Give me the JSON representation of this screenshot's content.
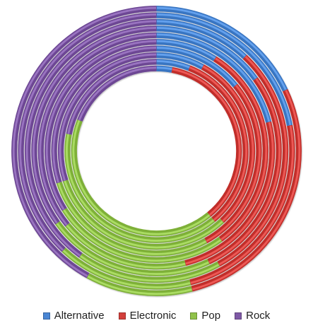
{
  "chart_data": {
    "type": "doughnut",
    "categories": [
      "Alternative",
      "Electronic",
      "Pop",
      "Rock"
    ],
    "series": [
      {
        "values": [
          18,
          28,
          12,
          42
        ]
      },
      {
        "values": [
          22,
          24,
          16,
          38
        ]
      },
      {
        "values": [
          12,
          30,
          18,
          40
        ]
      },
      {
        "values": [
          15,
          28,
          22,
          35
        ]
      },
      {
        "values": [
          21,
          25,
          18,
          36
        ]
      },
      {
        "values": [
          9,
          31,
          26,
          34
        ]
      },
      {
        "values": [
          14,
          28,
          28,
          30
        ]
      },
      {
        "values": [
          8,
          30,
          32,
          30
        ]
      },
      {
        "values": [
          6,
          33,
          39,
          22
        ]
      },
      {
        "values": [
          3,
          36,
          42,
          19
        ]
      }
    ],
    "colors": [
      "#4a86d4",
      "#d33f3b",
      "#90c24a",
      "#7f59a6"
    ],
    "grid": false,
    "legend_position": "bottom"
  }
}
